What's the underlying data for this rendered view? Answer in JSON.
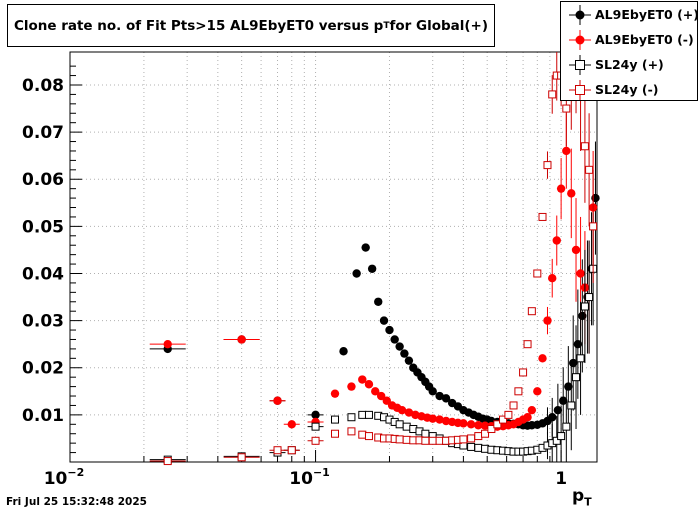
{
  "title": {
    "main": "Clone rate no. of Fit Pts>15 AL9EbyET0 versus p",
    "sub": "T",
    "tail": " for Global(+)"
  },
  "xlabel": {
    "main": "p",
    "sub": "T"
  },
  "timestamp": "Fri Jul 25 15:32:48 2025",
  "colors": {
    "black": "#000000",
    "red": "#ff0000",
    "redOpen": "#cc0000",
    "grid": "#b0b0b0"
  },
  "legend": [
    {
      "label": "AL9EbyET0 (+)",
      "color": "#000000",
      "marker": "filled-circle"
    },
    {
      "label": "AL9EbyET0 (-)",
      "color": "#ff0000",
      "marker": "filled-circle"
    },
    {
      "label": "SL24y (+)",
      "color": "#000000",
      "marker": "open-square"
    },
    {
      "label": "SL24y (-)",
      "color": "#cc0000",
      "marker": "open-square"
    }
  ],
  "chart_data": {
    "type": "scatter",
    "title": "Clone rate no. of Fit Pts>15 AL9EbyET0 versus pT for Global(+)",
    "xlabel": "pT",
    "ylabel": "",
    "xscale": "log",
    "xlim": [
      0.01,
      1.4
    ],
    "ylim": [
      0,
      0.087
    ],
    "grid": true,
    "legend_position": "top-right",
    "x_tick_labels": [
      "10^-2",
      "10^-1",
      "1"
    ],
    "y_tick_labels": [
      "0.01",
      "0.02",
      "0.03",
      "0.04",
      "0.05",
      "0.06",
      "0.07",
      "0.08"
    ],
    "series": [
      {
        "name": "AL9EbyET0 (+)",
        "color": "#000000",
        "marker": "filled-circle",
        "x": [
          0.025,
          0.05,
          0.07,
          0.1,
          0.13,
          0.147,
          0.16,
          0.17,
          0.18,
          0.19,
          0.2,
          0.21,
          0.22,
          0.23,
          0.24,
          0.25,
          0.26,
          0.27,
          0.28,
          0.29,
          0.3,
          0.32,
          0.34,
          0.36,
          0.38,
          0.4,
          0.42,
          0.44,
          0.46,
          0.48,
          0.5,
          0.52,
          0.55,
          0.58,
          0.61,
          0.64,
          0.67,
          0.7,
          0.73,
          0.76,
          0.8,
          0.84,
          0.88,
          0.92,
          0.97,
          1.02,
          1.07,
          1.12,
          1.17,
          1.22,
          1.28,
          1.33,
          1.38
        ],
        "y": [
          0.024,
          0.026,
          0.013,
          0.01,
          0.0235,
          0.04,
          0.0455,
          0.041,
          0.034,
          0.03,
          0.028,
          0.026,
          0.0245,
          0.023,
          0.0215,
          0.02,
          0.019,
          0.018,
          0.017,
          0.016,
          0.015,
          0.014,
          0.0135,
          0.0125,
          0.0118,
          0.011,
          0.0105,
          0.01,
          0.0096,
          0.0092,
          0.009,
          0.0087,
          0.0085,
          0.0083,
          0.0082,
          0.0081,
          0.008,
          0.0078,
          0.0077,
          0.0078,
          0.0079,
          0.0082,
          0.0087,
          0.0095,
          0.011,
          0.013,
          0.016,
          0.021,
          0.025,
          0.031,
          0.035,
          0.041,
          0.056
        ]
      },
      {
        "name": "AL9EbyET0 (-)",
        "color": "#ff0000",
        "marker": "filled-circle",
        "x": [
          0.025,
          0.05,
          0.07,
          0.08,
          0.1,
          0.12,
          0.14,
          0.155,
          0.165,
          0.175,
          0.185,
          0.195,
          0.205,
          0.215,
          0.225,
          0.24,
          0.255,
          0.27,
          0.285,
          0.3,
          0.32,
          0.34,
          0.36,
          0.38,
          0.4,
          0.43,
          0.46,
          0.49,
          0.52,
          0.55,
          0.58,
          0.61,
          0.64,
          0.67,
          0.7,
          0.73,
          0.76,
          0.8,
          0.84,
          0.88,
          0.92,
          0.96,
          1.0,
          1.05,
          1.1,
          1.15,
          1.2,
          1.25,
          1.3,
          1.35
        ],
        "y": [
          0.025,
          0.026,
          0.013,
          0.008,
          0.0085,
          0.0145,
          0.016,
          0.0175,
          0.0165,
          0.015,
          0.014,
          0.013,
          0.012,
          0.0115,
          0.011,
          0.0105,
          0.01,
          0.0097,
          0.0094,
          0.0092,
          0.009,
          0.0087,
          0.0085,
          0.0083,
          0.0082,
          0.008,
          0.0078,
          0.0077,
          0.0076,
          0.0075,
          0.0076,
          0.0078,
          0.008,
          0.0085,
          0.009,
          0.0095,
          0.011,
          0.015,
          0.022,
          0.03,
          0.039,
          0.047,
          0.058,
          0.066,
          0.057,
          0.045,
          0.04,
          0.037,
          0.035,
          0.054
        ]
      },
      {
        "name": "SL24y (+)",
        "color": "#000000",
        "marker": "open-square",
        "x": [
          0.025,
          0.05,
          0.07,
          0.08,
          0.1,
          0.12,
          0.14,
          0.155,
          0.165,
          0.18,
          0.19,
          0.2,
          0.21,
          0.22,
          0.235,
          0.25,
          0.265,
          0.28,
          0.3,
          0.32,
          0.34,
          0.36,
          0.38,
          0.4,
          0.43,
          0.46,
          0.49,
          0.52,
          0.55,
          0.58,
          0.61,
          0.64,
          0.67,
          0.7,
          0.73,
          0.76,
          0.8,
          0.84,
          0.88,
          0.92,
          0.96,
          1.0,
          1.05,
          1.1,
          1.15,
          1.2,
          1.25,
          1.3,
          1.35
        ],
        "y": [
          0.0005,
          0.0012,
          0.002,
          0.0025,
          0.0075,
          0.009,
          0.0095,
          0.01,
          0.01,
          0.0098,
          0.0095,
          0.009,
          0.0085,
          0.008,
          0.0075,
          0.007,
          0.0065,
          0.006,
          0.0055,
          0.005,
          0.0045,
          0.004,
          0.0038,
          0.0035,
          0.0032,
          0.003,
          0.0028,
          0.0026,
          0.0025,
          0.0024,
          0.0023,
          0.0022,
          0.0022,
          0.0022,
          0.0023,
          0.0024,
          0.0026,
          0.003,
          0.0035,
          0.004,
          0.0045,
          0.0055,
          0.0075,
          0.012,
          0.018,
          0.022,
          0.033,
          0.035,
          0.041
        ]
      },
      {
        "name": "SL24y (-)",
        "color": "#cc0000",
        "marker": "open-square",
        "x": [
          0.025,
          0.05,
          0.07,
          0.08,
          0.1,
          0.12,
          0.14,
          0.155,
          0.165,
          0.18,
          0.19,
          0.2,
          0.21,
          0.22,
          0.235,
          0.25,
          0.265,
          0.28,
          0.3,
          0.32,
          0.34,
          0.36,
          0.38,
          0.4,
          0.43,
          0.46,
          0.49,
          0.52,
          0.55,
          0.58,
          0.61,
          0.64,
          0.67,
          0.7,
          0.73,
          0.76,
          0.8,
          0.84,
          0.88,
          0.92,
          0.96,
          1.0,
          1.05,
          1.1,
          1.15,
          1.2,
          1.25,
          1.3,
          1.35
        ],
        "y": [
          0.0002,
          0.001,
          0.0025,
          0.0025,
          0.0045,
          0.006,
          0.0065,
          0.0058,
          0.0055,
          0.0052,
          0.005,
          0.005,
          0.0049,
          0.0048,
          0.0047,
          0.0046,
          0.0046,
          0.0045,
          0.0045,
          0.0045,
          0.0045,
          0.0046,
          0.0047,
          0.0048,
          0.005,
          0.0055,
          0.006,
          0.007,
          0.008,
          0.009,
          0.01,
          0.012,
          0.015,
          0.019,
          0.025,
          0.032,
          0.04,
          0.052,
          0.063,
          0.078,
          0.082,
          0.082,
          0.075,
          0.08,
          0.085,
          0.078,
          0.067,
          0.062,
          0.05
        ]
      }
    ]
  }
}
